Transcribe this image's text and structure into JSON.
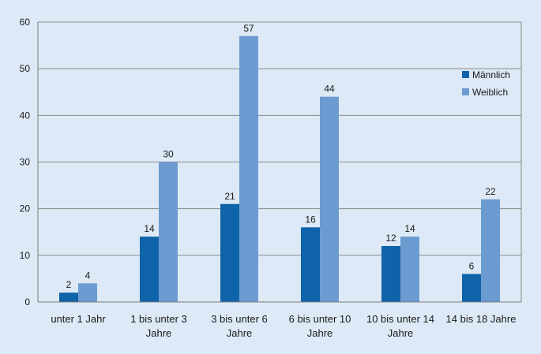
{
  "chart_data": {
    "type": "bar",
    "categories": [
      [
        "unter 1 Jahr"
      ],
      [
        "1 bis unter 3",
        "Jahre"
      ],
      [
        "3 bis unter 6",
        "Jahre"
      ],
      [
        "6 bis unter 10",
        "Jahre"
      ],
      [
        "10 bis unter 14",
        "Jahre"
      ],
      [
        "14 bis 18 Jahre"
      ]
    ],
    "series": [
      {
        "name": "Männlich",
        "values": [
          2,
          14,
          21,
          16,
          12,
          6
        ],
        "color": "#0f63a8"
      },
      {
        "name": "Weiblich",
        "values": [
          4,
          30,
          57,
          44,
          14,
          22
        ],
        "color": "#6b9bd1"
      }
    ],
    "ylim": [
      0,
      60
    ],
    "yticks": [
      0,
      10,
      20,
      30,
      40,
      50,
      60
    ],
    "grid": true,
    "legend": "top-right",
    "data_labels": true
  }
}
